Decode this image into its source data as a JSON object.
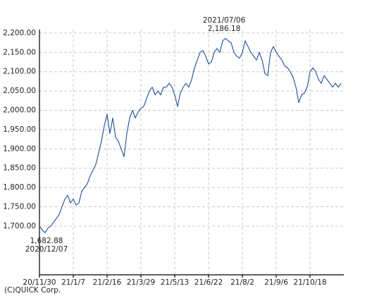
{
  "chart_data": {
    "type": "line",
    "categories": [
      "20/11/30",
      null,
      null,
      null,
      null,
      null,
      null,
      null,
      null,
      null,
      null,
      null,
      "21/1/7",
      null,
      null,
      null,
      null,
      null,
      null,
      null,
      null,
      null,
      null,
      null,
      "21/2/16",
      null,
      null,
      null,
      null,
      null,
      null,
      null,
      null,
      null,
      null,
      null,
      "21/3/29",
      null,
      null,
      null,
      null,
      null,
      null,
      null,
      null,
      null,
      null,
      null,
      "21/5/13",
      null,
      null,
      null,
      null,
      null,
      null,
      null,
      null,
      null,
      null,
      null,
      "21/6/22",
      null,
      null,
      null,
      null,
      null,
      null,
      null,
      null,
      null,
      null,
      null,
      "21/8/2",
      null,
      null,
      null,
      null,
      null,
      null,
      null,
      null,
      null,
      null,
      null,
      "21/9/6",
      null,
      null,
      null,
      null,
      null,
      null,
      null,
      null,
      null,
      null,
      null,
      "21/10/18",
      null,
      null,
      null,
      null,
      null,
      null,
      null,
      null,
      null,
      null,
      null
    ],
    "series": [
      {
        "color": "#1d4f9c",
        "values": [
          1700,
          1690,
          1682.88,
          1695,
          1700,
          1710,
          1720,
          1730,
          1750,
          1770,
          1780,
          1760,
          1770,
          1755,
          1760,
          1790,
          1800,
          1810,
          1830,
          1845,
          1860,
          1890,
          1920,
          1960,
          1990,
          1940,
          1980,
          1930,
          1920,
          1900,
          1880,
          1940,
          1980,
          2000,
          1980,
          1995,
          2005,
          2010,
          2030,
          2050,
          2060,
          2040,
          2050,
          2040,
          2060,
          2060,
          2070,
          2060,
          2040,
          2010,
          2045,
          2060,
          2070,
          2060,
          2080,
          2110,
          2130,
          2150,
          2155,
          2140,
          2120,
          2125,
          2150,
          2160,
          2150,
          2180,
          2186.18,
          2180,
          2175,
          2150,
          2140,
          2135,
          2150,
          2180,
          2165,
          2150,
          2140,
          2130,
          2150,
          2130,
          2095,
          2090,
          2150,
          2165,
          2150,
          2140,
          2130,
          2115,
          2110,
          2100,
          2085,
          2060,
          2020,
          2040,
          2045,
          2060,
          2100,
          2110,
          2100,
          2080,
          2070,
          2090,
          2080,
          2070,
          2060,
          2070,
          2060,
          2070
        ]
      }
    ],
    "ylim": [
      1574,
      2209
    ],
    "yticks": [
      {
        "value": 1700,
        "label": "1,700.00"
      },
      {
        "value": 1750,
        "label": "1,750.00"
      },
      {
        "value": 1800,
        "label": "1,800.00"
      },
      {
        "value": 1850,
        "label": "1,850.00"
      },
      {
        "value": 1900,
        "label": "1,900.00"
      },
      {
        "value": 1950,
        "label": "1,950.00"
      },
      {
        "value": 2000,
        "label": "2,000.00"
      },
      {
        "value": 2050,
        "label": "2,050.00"
      },
      {
        "value": 2100,
        "label": "2,100.00"
      },
      {
        "value": 2150,
        "label": "2,150.00"
      },
      {
        "value": 2200,
        "label": "2,200.00"
      }
    ],
    "grid": true,
    "annotations": [
      "2021/07/06",
      "2,186.18",
      "1,682.88",
      "2020/12/07"
    ],
    "source": "(C)QUICK Corp."
  }
}
